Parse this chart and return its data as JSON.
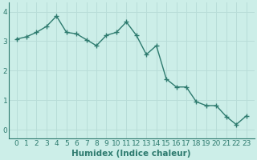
{
  "x": [
    0,
    1,
    2,
    3,
    4,
    5,
    6,
    7,
    8,
    9,
    10,
    11,
    12,
    13,
    14,
    15,
    16,
    17,
    18,
    19,
    20,
    21,
    22,
    23
  ],
  "y": [
    3.07,
    3.15,
    3.3,
    3.5,
    3.85,
    3.3,
    3.25,
    3.05,
    2.85,
    3.2,
    3.3,
    3.65,
    3.2,
    2.55,
    2.85,
    1.72,
    1.45,
    1.45,
    0.95,
    0.82,
    0.82,
    0.45,
    0.18,
    0.47
  ],
  "line_color": "#2d7a6e",
  "marker": "+",
  "bg_color": "#cceee8",
  "grid_color": "#b8ddd8",
  "xlabel": "Humidex (Indice chaleur)",
  "ylim": [
    -0.3,
    4.3
  ],
  "xlim": [
    -0.8,
    23.8
  ],
  "yticks": [
    0,
    1,
    2,
    3,
    4
  ],
  "xtick_labels": [
    "0",
    "1",
    "2",
    "3",
    "4",
    "5",
    "6",
    "7",
    "8",
    "9",
    "10",
    "11",
    "12",
    "13",
    "14",
    "15",
    "16",
    "17",
    "18",
    "19",
    "20",
    "21",
    "22",
    "23"
  ],
  "xticks": [
    0,
    1,
    2,
    3,
    4,
    5,
    6,
    7,
    8,
    9,
    10,
    11,
    12,
    13,
    14,
    15,
    16,
    17,
    18,
    19,
    20,
    21,
    22,
    23
  ],
  "xlabel_fontsize": 7.5,
  "tick_fontsize": 6.5,
  "label_color": "#2d7a6e",
  "line_width": 1.0,
  "marker_size": 4,
  "marker_ew": 1.0
}
